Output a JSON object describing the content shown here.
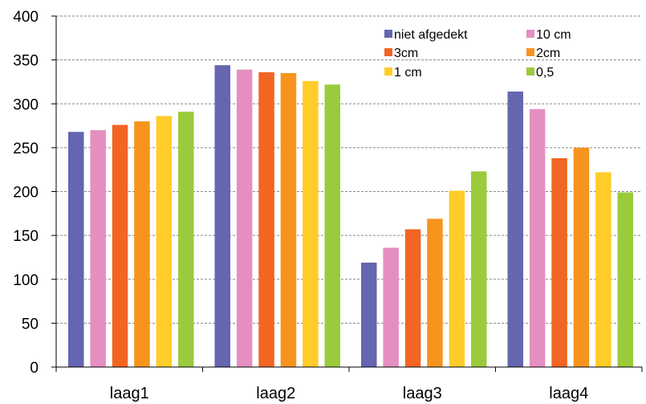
{
  "chart_data": {
    "type": "bar",
    "categories": [
      "laag1",
      "laag2",
      "laag3",
      "laag4"
    ],
    "series": [
      {
        "name": "niet afgedekt",
        "color": "#6466b0",
        "values": [
          268,
          344,
          119,
          314
        ]
      },
      {
        "name": "10 cm",
        "color": "#e58fc1",
        "values": [
          270,
          339,
          136,
          294
        ]
      },
      {
        "name": "3cm",
        "color": "#f26522",
        "values": [
          276,
          336,
          157,
          238
        ]
      },
      {
        "name": "2cm",
        "color": "#f7941d",
        "values": [
          280,
          335,
          169,
          250
        ]
      },
      {
        "name": "1 cm",
        "color": "#ffcc29",
        "values": [
          286,
          326,
          201,
          222
        ]
      },
      {
        "name": "0,5",
        "color": "#9bcb3c",
        "values": [
          291,
          322,
          223,
          199
        ]
      }
    ],
    "ylim": [
      0,
      400
    ],
    "yticks": [
      0,
      50,
      100,
      150,
      200,
      250,
      300,
      350,
      400
    ],
    "grid": true,
    "legend_position": "top-right"
  }
}
